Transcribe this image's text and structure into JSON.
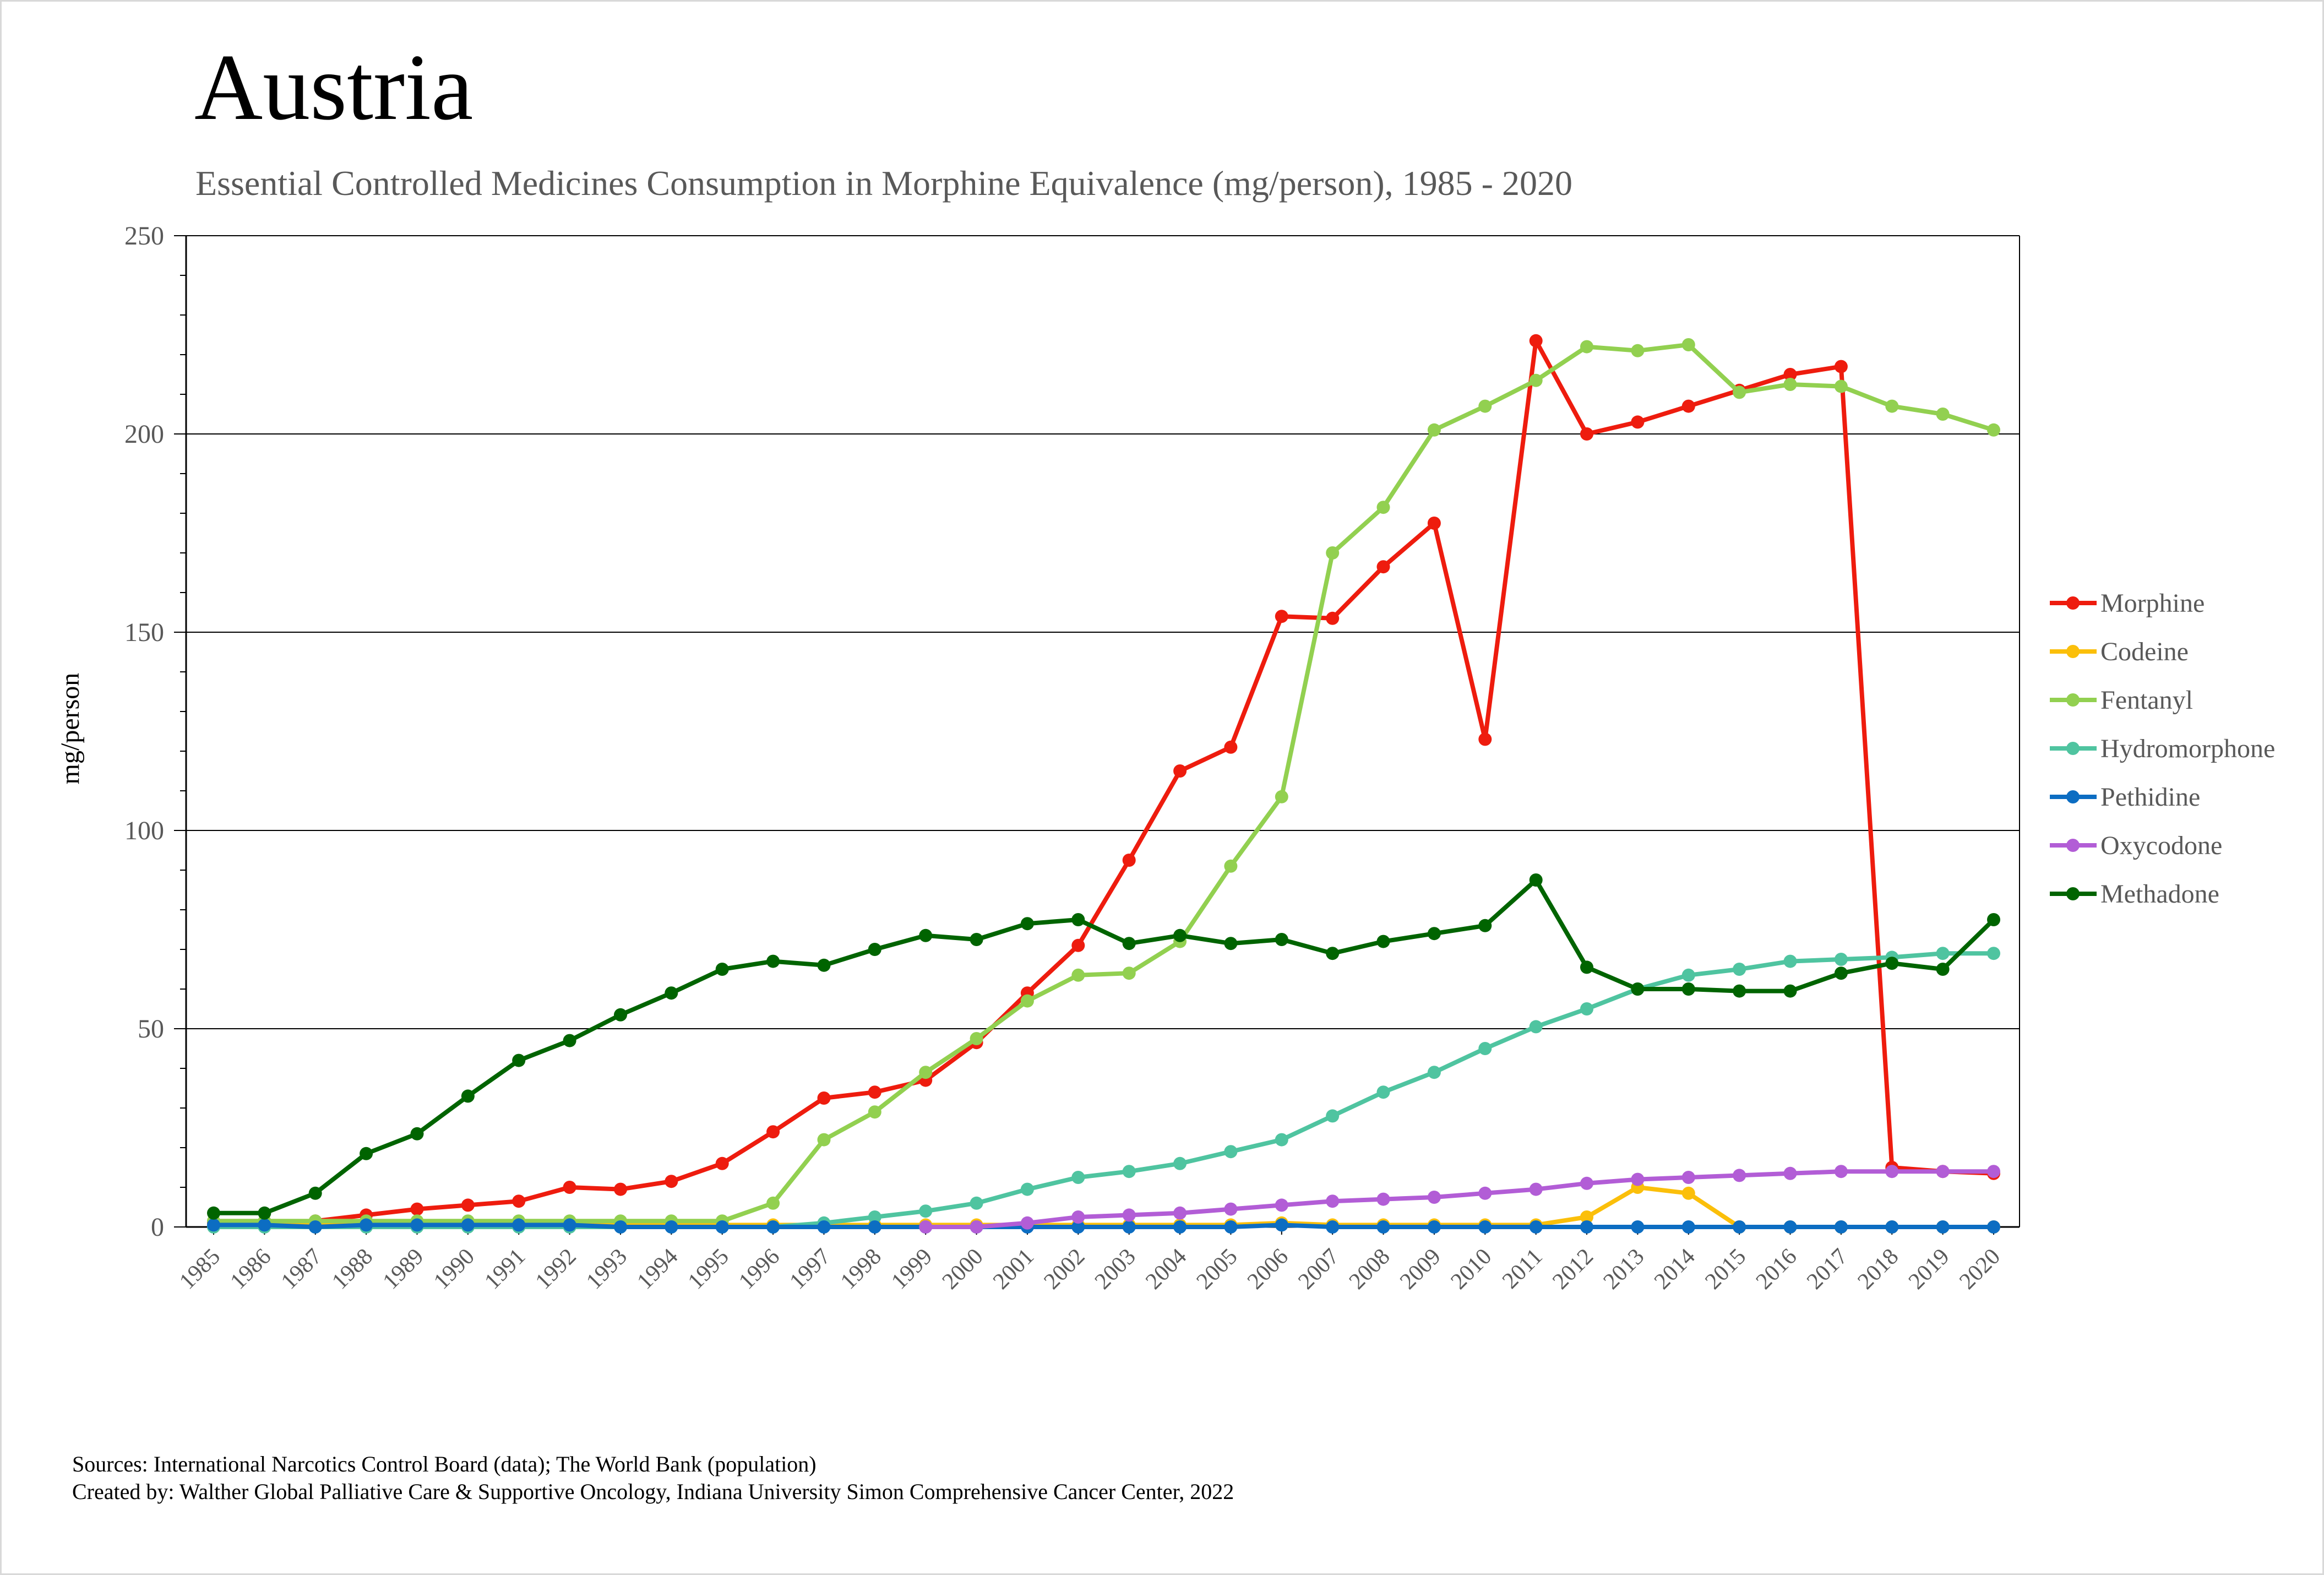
{
  "chart_data": {
    "type": "line",
    "title": "Austria",
    "subtitle": "Essential Controlled Medicines Consumption in Morphine Equivalence (mg/person), 1985 - 2020",
    "xlabel": "",
    "ylabel": "mg/person",
    "ylim": [
      0,
      250
    ],
    "yticks": [
      0,
      50,
      100,
      150,
      200,
      250
    ],
    "grid": true,
    "legend_position": "right",
    "x": [
      "1985",
      "1986",
      "1987",
      "1988",
      "1989",
      "1990",
      "1991",
      "1992",
      "1993",
      "1994",
      "1995",
      "1996",
      "1997",
      "1998",
      "1999",
      "2000",
      "2001",
      "2002",
      "2003",
      "2004",
      "2005",
      "2006",
      "2007",
      "2008",
      "2009",
      "2010",
      "2011",
      "2012",
      "2013",
      "2014",
      "2015",
      "2016",
      "2017",
      "2018",
      "2019",
      "2020"
    ],
    "series": [
      {
        "name": "Morphine",
        "color": "#ee1c0e",
        "values": [
          1,
          1,
          1.5,
          3,
          4.5,
          5.5,
          6.5,
          10,
          9.5,
          11.5,
          16,
          24,
          32.5,
          34,
          37,
          46.5,
          59,
          71,
          92.5,
          115,
          121,
          154,
          153.5,
          166.5,
          177.5,
          123,
          223.5,
          200,
          203,
          207,
          211,
          215,
          217,
          15,
          14,
          13.5
        ]
      },
      {
        "name": "Codeine",
        "color": "#fbbf0a",
        "values": [
          0.5,
          0.5,
          0.5,
          0.5,
          0.5,
          0.5,
          0.5,
          0.5,
          0.5,
          0.5,
          0.5,
          0.5,
          0.5,
          0.5,
          0.5,
          0.5,
          0.5,
          0.5,
          0.5,
          0.5,
          0.5,
          1,
          0.5,
          0.5,
          0.5,
          0.5,
          0.5,
          2.5,
          10,
          8.5,
          0,
          0,
          0,
          0,
          0,
          0
        ]
      },
      {
        "name": "Fentanyl",
        "color": "#92d050",
        "values": [
          1.5,
          1.5,
          1.5,
          1.5,
          1.5,
          1.5,
          1.5,
          1.5,
          1.5,
          1.5,
          1.5,
          6,
          22,
          29,
          39,
          47.5,
          57,
          63.5,
          64,
          72,
          91,
          108.5,
          170,
          181.5,
          201,
          207,
          213.5,
          222,
          221,
          222.5,
          210.5,
          212.5,
          212,
          207,
          205,
          201
        ]
      },
      {
        "name": "Hydromorphone",
        "color": "#4fc4a0",
        "values": [
          0,
          0,
          0,
          0,
          0,
          0,
          0,
          0,
          0,
          0,
          0,
          0,
          1,
          2.5,
          4,
          6,
          9.5,
          12.5,
          14,
          16,
          19,
          22,
          28,
          34,
          39,
          45,
          50.5,
          55,
          60,
          63.5,
          65,
          67,
          67.5,
          68,
          69,
          69
        ]
      },
      {
        "name": "Pethidine",
        "color": "#0c6dc2",
        "values": [
          0.5,
          0.5,
          0,
          0.5,
          0.5,
          0.5,
          0.5,
          0.5,
          0,
          0,
          0,
          0,
          0,
          0,
          0,
          0,
          0,
          0,
          0,
          0,
          0,
          0.5,
          0,
          0,
          0,
          0,
          0,
          0,
          0,
          0,
          0,
          0,
          0,
          0,
          0,
          0
        ]
      },
      {
        "name": "Oxycodone",
        "color": "#b25dd6",
        "values": [
          null,
          null,
          null,
          null,
          null,
          null,
          null,
          null,
          null,
          null,
          null,
          null,
          null,
          null,
          0,
          0,
          1,
          2.5,
          3,
          3.5,
          4.5,
          5.5,
          6.5,
          7,
          7.5,
          8.5,
          9.5,
          11,
          12,
          12.5,
          13,
          13.5,
          14,
          14,
          14,
          14
        ]
      },
      {
        "name": "Methadone",
        "color": "#006400",
        "values": [
          3.5,
          3.5,
          8.5,
          18.5,
          23.5,
          33,
          42,
          47,
          53.5,
          59,
          65,
          67,
          66,
          70,
          73.5,
          72.5,
          76.5,
          77.5,
          71.5,
          73.5,
          71.5,
          72.5,
          69,
          72,
          74,
          76,
          87.5,
          65.5,
          60,
          60,
          59.5,
          59.5,
          64,
          66.5,
          65,
          77.5
        ]
      }
    ]
  },
  "footer": {
    "sources": "Sources: International Narcotics Control Board (data); The World Bank (population)",
    "created_by": "Created by: Walther Global Palliative Care & Supportive Oncology, Indiana University Simon Comprehensive Cancer Center, 2022"
  }
}
